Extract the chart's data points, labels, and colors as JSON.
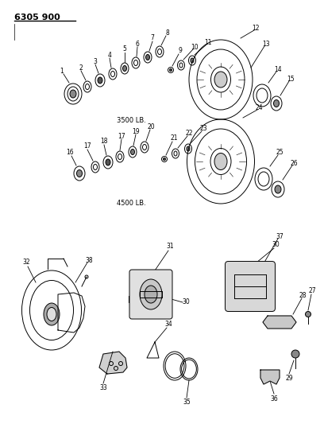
{
  "title": "6305 900",
  "background_color": "#ffffff",
  "text_color": "#000000",
  "line_color": "#000000",
  "label_3500": "3500 LB.",
  "label_4500": "4500 LB.",
  "figsize": [
    4.08,
    5.33
  ],
  "dpi": 100
}
